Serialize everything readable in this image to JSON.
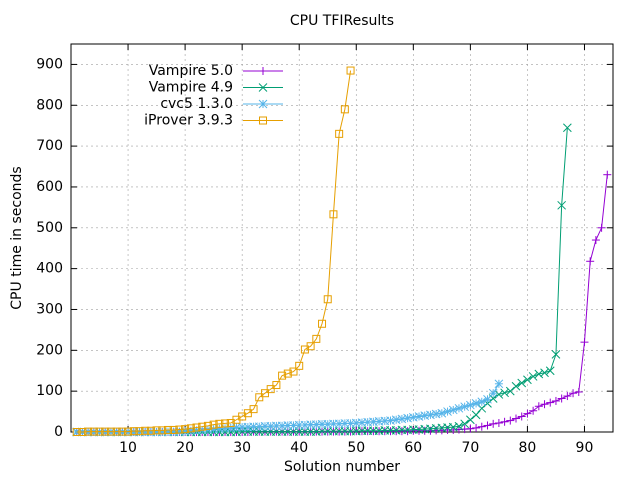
{
  "chart_data": {
    "type": "line",
    "title": "CPU TFIResults",
    "xlabel": "Solution number",
    "ylabel": "CPU time in seconds",
    "xlim": [
      0,
      95
    ],
    "ylim": [
      0,
      950
    ],
    "xticks": [
      10,
      20,
      30,
      40,
      50,
      60,
      70,
      80,
      90
    ],
    "yticks": [
      0,
      100,
      200,
      300,
      400,
      500,
      600,
      700,
      800,
      900
    ],
    "grid": true,
    "legend_position": "top-left",
    "series": [
      {
        "name": "Vampire 5.0",
        "color": "#9400d3",
        "marker": "plus",
        "points": [
          [
            1,
            0
          ],
          [
            2,
            0
          ],
          [
            3,
            0
          ],
          [
            4,
            0
          ],
          [
            5,
            0
          ],
          [
            6,
            0
          ],
          [
            7,
            0
          ],
          [
            8,
            0
          ],
          [
            9,
            0
          ],
          [
            10,
            0
          ],
          [
            11,
            0
          ],
          [
            12,
            0
          ],
          [
            13,
            0
          ],
          [
            14,
            0
          ],
          [
            15,
            0
          ],
          [
            16,
            0
          ],
          [
            17,
            0
          ],
          [
            18,
            0
          ],
          [
            19,
            0
          ],
          [
            20,
            0
          ],
          [
            21,
            0
          ],
          [
            22,
            0
          ],
          [
            23,
            0
          ],
          [
            24,
            0
          ],
          [
            25,
            0
          ],
          [
            26,
            0
          ],
          [
            27,
            0
          ],
          [
            28,
            0
          ],
          [
            29,
            0
          ],
          [
            30,
            0
          ],
          [
            31,
            0
          ],
          [
            32,
            1
          ],
          [
            33,
            1
          ],
          [
            34,
            1
          ],
          [
            35,
            1
          ],
          [
            36,
            1
          ],
          [
            37,
            1
          ],
          [
            38,
            1
          ],
          [
            39,
            1
          ],
          [
            40,
            1
          ],
          [
            41,
            1
          ],
          [
            42,
            1
          ],
          [
            43,
            1
          ],
          [
            44,
            1
          ],
          [
            45,
            1
          ],
          [
            46,
            1
          ],
          [
            47,
            1
          ],
          [
            48,
            1
          ],
          [
            49,
            1
          ],
          [
            50,
            2
          ],
          [
            51,
            2
          ],
          [
            52,
            2
          ],
          [
            53,
            2
          ],
          [
            54,
            2
          ],
          [
            55,
            2
          ],
          [
            56,
            2
          ],
          [
            57,
            2
          ],
          [
            58,
            2
          ],
          [
            59,
            2
          ],
          [
            60,
            3
          ],
          [
            61,
            3
          ],
          [
            62,
            3
          ],
          [
            63,
            3
          ],
          [
            64,
            4
          ],
          [
            65,
            4
          ],
          [
            66,
            5
          ],
          [
            67,
            5
          ],
          [
            68,
            6
          ],
          [
            69,
            7
          ],
          [
            70,
            8
          ],
          [
            71,
            10
          ],
          [
            72,
            13
          ],
          [
            73,
            16
          ],
          [
            74,
            20
          ],
          [
            75,
            22
          ],
          [
            76,
            25
          ],
          [
            77,
            28
          ],
          [
            78,
            33
          ],
          [
            79,
            38
          ],
          [
            80,
            45
          ],
          [
            81,
            52
          ],
          [
            82,
            63
          ],
          [
            83,
            68
          ],
          [
            84,
            72
          ],
          [
            85,
            76
          ],
          [
            86,
            82
          ],
          [
            87,
            88
          ],
          [
            88,
            95
          ],
          [
            89,
            98
          ],
          [
            90,
            220
          ],
          [
            91,
            418
          ],
          [
            92,
            470
          ],
          [
            93,
            500
          ],
          [
            94,
            630
          ]
        ]
      },
      {
        "name": "Vampire 4.9",
        "color": "#009e73",
        "marker": "cross",
        "points": [
          [
            1,
            0
          ],
          [
            2,
            0
          ],
          [
            3,
            0
          ],
          [
            4,
            0
          ],
          [
            5,
            0
          ],
          [
            6,
            0
          ],
          [
            7,
            0
          ],
          [
            8,
            0
          ],
          [
            9,
            0
          ],
          [
            10,
            0
          ],
          [
            11,
            0
          ],
          [
            12,
            0
          ],
          [
            13,
            0
          ],
          [
            14,
            0
          ],
          [
            15,
            0
          ],
          [
            16,
            0
          ],
          [
            17,
            0
          ],
          [
            18,
            0
          ],
          [
            19,
            0
          ],
          [
            20,
            0
          ],
          [
            21,
            0
          ],
          [
            22,
            0
          ],
          [
            23,
            0
          ],
          [
            24,
            0
          ],
          [
            25,
            0
          ],
          [
            26,
            0
          ],
          [
            27,
            0
          ],
          [
            28,
            0
          ],
          [
            29,
            0
          ],
          [
            30,
            1
          ],
          [
            31,
            1
          ],
          [
            32,
            1
          ],
          [
            33,
            1
          ],
          [
            34,
            1
          ],
          [
            35,
            1
          ],
          [
            36,
            1
          ],
          [
            37,
            1
          ],
          [
            38,
            1
          ],
          [
            39,
            1
          ],
          [
            40,
            1
          ],
          [
            41,
            1
          ],
          [
            42,
            1
          ],
          [
            43,
            1
          ],
          [
            44,
            2
          ],
          [
            45,
            2
          ],
          [
            46,
            2
          ],
          [
            47,
            2
          ],
          [
            48,
            2
          ],
          [
            49,
            2
          ],
          [
            50,
            2
          ],
          [
            51,
            3
          ],
          [
            52,
            3
          ],
          [
            53,
            3
          ],
          [
            54,
            3
          ],
          [
            55,
            4
          ],
          [
            56,
            4
          ],
          [
            57,
            4
          ],
          [
            58,
            5
          ],
          [
            59,
            5
          ],
          [
            60,
            6
          ],
          [
            61,
            6
          ],
          [
            62,
            7
          ],
          [
            63,
            8
          ],
          [
            64,
            9
          ],
          [
            65,
            10
          ],
          [
            66,
            11
          ],
          [
            67,
            12
          ],
          [
            68,
            14
          ],
          [
            69,
            20
          ],
          [
            70,
            30
          ],
          [
            71,
            42
          ],
          [
            72,
            58
          ],
          [
            73,
            70
          ],
          [
            74,
            82
          ],
          [
            75,
            92
          ],
          [
            76,
            96
          ],
          [
            77,
            100
          ],
          [
            78,
            112
          ],
          [
            79,
            120
          ],
          [
            80,
            128
          ],
          [
            81,
            136
          ],
          [
            82,
            142
          ],
          [
            83,
            145
          ],
          [
            84,
            150
          ],
          [
            85,
            190
          ],
          [
            86,
            555
          ],
          [
            87,
            745
          ]
        ]
      },
      {
        "name": "cvc5 1.3.0",
        "color": "#56b4e9",
        "marker": "star",
        "points": [
          [
            1,
            0
          ],
          [
            2,
            0
          ],
          [
            3,
            0
          ],
          [
            4,
            0
          ],
          [
            5,
            0
          ],
          [
            6,
            0
          ],
          [
            7,
            0
          ],
          [
            8,
            0
          ],
          [
            9,
            0
          ],
          [
            10,
            0
          ],
          [
            11,
            0
          ],
          [
            12,
            0
          ],
          [
            13,
            0
          ],
          [
            14,
            0
          ],
          [
            15,
            0
          ],
          [
            16,
            0
          ],
          [
            17,
            1
          ],
          [
            18,
            1
          ],
          [
            19,
            1
          ],
          [
            20,
            2
          ],
          [
            21,
            3
          ],
          [
            22,
            4
          ],
          [
            23,
            5
          ],
          [
            24,
            6
          ],
          [
            25,
            7
          ],
          [
            26,
            8
          ],
          [
            27,
            9
          ],
          [
            28,
            10
          ],
          [
            29,
            11
          ],
          [
            30,
            12
          ],
          [
            31,
            12
          ],
          [
            32,
            13
          ],
          [
            33,
            13
          ],
          [
            34,
            14
          ],
          [
            35,
            14
          ],
          [
            36,
            15
          ],
          [
            37,
            15
          ],
          [
            38,
            16
          ],
          [
            39,
            16
          ],
          [
            40,
            17
          ],
          [
            41,
            17
          ],
          [
            42,
            18
          ],
          [
            43,
            18
          ],
          [
            44,
            19
          ],
          [
            45,
            19
          ],
          [
            46,
            20
          ],
          [
            47,
            20
          ],
          [
            48,
            21
          ],
          [
            49,
            21
          ],
          [
            50,
            22
          ],
          [
            51,
            23
          ],
          [
            52,
            24
          ],
          [
            53,
            25
          ],
          [
            54,
            26
          ],
          [
            55,
            27
          ],
          [
            56,
            28
          ],
          [
            57,
            30
          ],
          [
            58,
            32
          ],
          [
            59,
            34
          ],
          [
            60,
            36
          ],
          [
            61,
            38
          ],
          [
            62,
            40
          ],
          [
            63,
            42
          ],
          [
            64,
            44
          ],
          [
            65,
            46
          ],
          [
            66,
            50
          ],
          [
            67,
            54
          ],
          [
            68,
            58
          ],
          [
            69,
            62
          ],
          [
            70,
            66
          ],
          [
            71,
            70
          ],
          [
            72,
            74
          ],
          [
            73,
            80
          ],
          [
            74,
            95
          ],
          [
            75,
            118
          ]
        ]
      },
      {
        "name": "iProver 3.9.3",
        "color": "#e69f00",
        "marker": "square",
        "points": [
          [
            1,
            0
          ],
          [
            2,
            0
          ],
          [
            3,
            1
          ],
          [
            4,
            1
          ],
          [
            5,
            1
          ],
          [
            6,
            1
          ],
          [
            7,
            1
          ],
          [
            8,
            1
          ],
          [
            9,
            1
          ],
          [
            10,
            1
          ],
          [
            11,
            2
          ],
          [
            12,
            2
          ],
          [
            13,
            3
          ],
          [
            14,
            3
          ],
          [
            15,
            4
          ],
          [
            16,
            4
          ],
          [
            17,
            5
          ],
          [
            18,
            5
          ],
          [
            19,
            6
          ],
          [
            20,
            7
          ],
          [
            21,
            9
          ],
          [
            22,
            11
          ],
          [
            23,
            13
          ],
          [
            24,
            15
          ],
          [
            25,
            18
          ],
          [
            26,
            20
          ],
          [
            27,
            21
          ],
          [
            28,
            22
          ],
          [
            29,
            30
          ],
          [
            30,
            38
          ],
          [
            31,
            46
          ],
          [
            32,
            56
          ],
          [
            33,
            85
          ],
          [
            34,
            95
          ],
          [
            35,
            105
          ],
          [
            36,
            115
          ],
          [
            37,
            138
          ],
          [
            38,
            143
          ],
          [
            39,
            148
          ],
          [
            40,
            162
          ],
          [
            41,
            202
          ],
          [
            42,
            210
          ],
          [
            43,
            228
          ],
          [
            44,
            265
          ],
          [
            45,
            325
          ],
          [
            46,
            533
          ],
          [
            47,
            730
          ],
          [
            48,
            790
          ],
          [
            49,
            885
          ]
        ]
      }
    ]
  }
}
